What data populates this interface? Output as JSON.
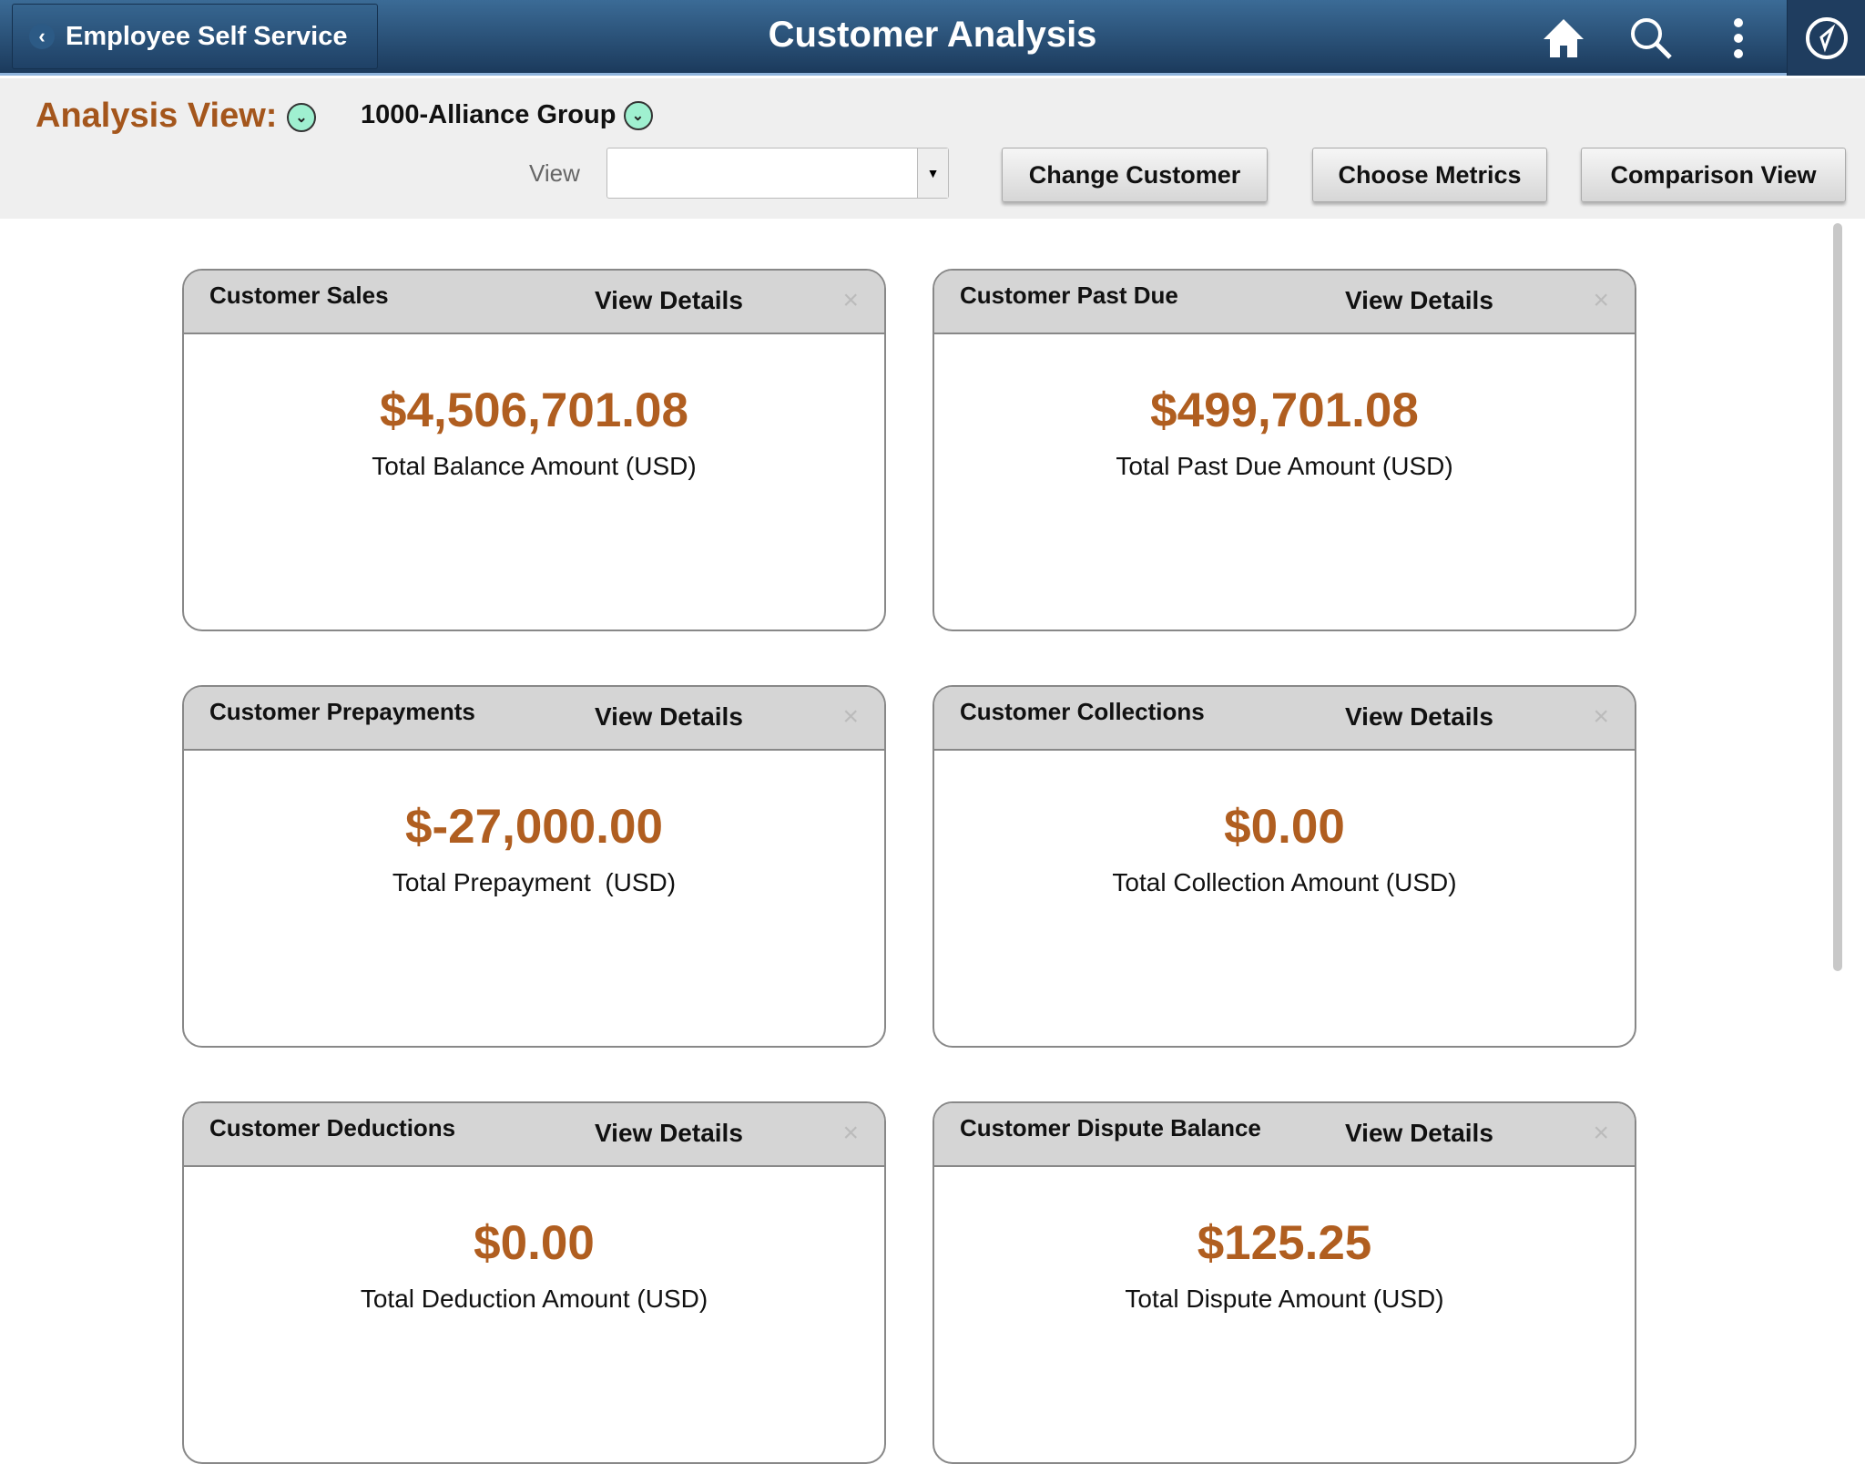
{
  "header": {
    "back_label": "Employee Self Service",
    "title": "Customer Analysis"
  },
  "toolbar": {
    "analysis_view_label": "Analysis View:",
    "customer": "1000-Alliance Group",
    "view_label": "View",
    "view_value": "",
    "change_customer": "Change Customer",
    "choose_metrics": "Choose Metrics",
    "comparison_view": "Comparison View"
  },
  "colors": {
    "accent": "#b05e20",
    "header": "#1f4166"
  },
  "cards": [
    {
      "title": "Customer Sales",
      "link": "View Details",
      "close": "×",
      "amount": "$4,506,701.08",
      "label": "Total Balance Amount (USD)"
    },
    {
      "title": "Customer Past Due",
      "link": "View Details",
      "close": "×",
      "amount": "$499,701.08",
      "label": "Total Past Due Amount (USD)"
    },
    {
      "title": "Customer Prepayments",
      "link": "View Details",
      "close": "×",
      "amount": "$-27,000.00",
      "label": "Total Prepayment  (USD)"
    },
    {
      "title": "Customer Collections",
      "link": "View Details",
      "close": "×",
      "amount": "$0.00",
      "label": "Total Collection Amount (USD)"
    },
    {
      "title": "Customer Deductions",
      "link": "View Details",
      "close": "×",
      "amount": "$0.00",
      "label": "Total Deduction Amount (USD)"
    },
    {
      "title": "Customer Dispute Balance",
      "link": "View Details",
      "close": "×",
      "amount": "$125.25",
      "label": "Total Dispute Amount (USD)"
    }
  ]
}
